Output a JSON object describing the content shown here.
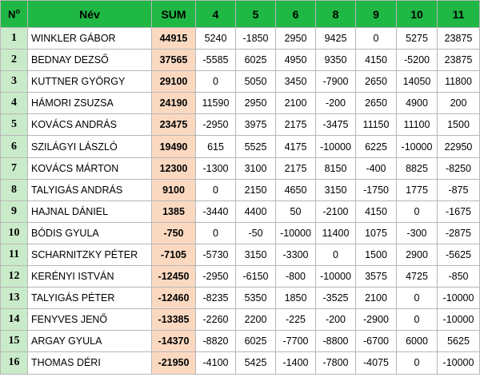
{
  "header": {
    "num": "N",
    "num_sup": "o",
    "name": "Név",
    "sum": "SUM",
    "rounds": [
      "4",
      "5",
      "6",
      "8",
      "9",
      "10",
      "11"
    ]
  },
  "rows": [
    {
      "num": "1",
      "name": "WINKLER GÁBOR",
      "sum": "44915",
      "values": [
        "5240",
        "-1850",
        "2950",
        "9425",
        "0",
        "5275",
        "23875"
      ]
    },
    {
      "num": "2",
      "name": "BEDNAY DEZSŐ",
      "sum": "37565",
      "values": [
        "-5585",
        "6025",
        "4950",
        "9350",
        "4150",
        "-5200",
        "23875"
      ]
    },
    {
      "num": "3",
      "name": "KUTTNER GYÖRGY",
      "sum": "29100",
      "values": [
        "0",
        "5050",
        "3450",
        "-7900",
        "2650",
        "14050",
        "11800"
      ]
    },
    {
      "num": "4",
      "name": "HÁMORI ZSUZSA",
      "sum": "24190",
      "values": [
        "11590",
        "2950",
        "2100",
        "-200",
        "2650",
        "4900",
        "200"
      ]
    },
    {
      "num": "5",
      "name": "KOVÁCS ANDRÁS",
      "sum": "23475",
      "values": [
        "-2950",
        "3975",
        "2175",
        "-3475",
        "11150",
        "11100",
        "1500"
      ]
    },
    {
      "num": "6",
      "name": "SZILÁGYI LÁSZLÓ",
      "sum": "19490",
      "values": [
        "615",
        "5525",
        "4175",
        "-10000",
        "6225",
        "-10000",
        "22950"
      ]
    },
    {
      "num": "7",
      "name": "KOVÁCS MÁRTON",
      "sum": "12300",
      "values": [
        "-1300",
        "3100",
        "2175",
        "8150",
        "-400",
        "8825",
        "-8250"
      ]
    },
    {
      "num": "8",
      "name": "TALYIGÁS ANDRÁS",
      "sum": "9100",
      "values": [
        "0",
        "2150",
        "4650",
        "3150",
        "-1750",
        "1775",
        "-875"
      ]
    },
    {
      "num": "9",
      "name": "HAJNAL DÁNIEL",
      "sum": "1385",
      "values": [
        "-3440",
        "4400",
        "50",
        "-2100",
        "4150",
        "0",
        "-1675"
      ]
    },
    {
      "num": "10",
      "name": "BÓDIS GYULA",
      "sum": "-750",
      "values": [
        "0",
        "-50",
        "-10000",
        "11400",
        "1075",
        "-300",
        "-2875"
      ]
    },
    {
      "num": "11",
      "name": "SCHARNITZKY PÉTER",
      "sum": "-7105",
      "values": [
        "-5730",
        "3150",
        "-3300",
        "0",
        "1500",
        "2900",
        "-5625"
      ]
    },
    {
      "num": "12",
      "name": "KERÉNYI ISTVÁN",
      "sum": "-12450",
      "values": [
        "-2950",
        "-6150",
        "-800",
        "-10000",
        "3575",
        "4725",
        "-850"
      ]
    },
    {
      "num": "13",
      "name": "TALYIGÁS PÉTER",
      "sum": "-12460",
      "values": [
        "-8235",
        "5350",
        "1850",
        "-3525",
        "2100",
        "0",
        "-10000"
      ]
    },
    {
      "num": "14",
      "name": "FENYVES JENŐ",
      "sum": "-13385",
      "values": [
        "-2260",
        "2200",
        "-225",
        "-200",
        "-2900",
        "0",
        "-10000"
      ]
    },
    {
      "num": "15",
      "name": "ARGAY GYULA",
      "sum": "-14370",
      "values": [
        "-8820",
        "6025",
        "-7700",
        "-8800",
        "-6700",
        "6000",
        "5625"
      ]
    },
    {
      "num": "16",
      "name": "THOMAS DÉRI",
      "sum": "-21950",
      "values": [
        "-4100",
        "5425",
        "-1400",
        "-7800",
        "-4075",
        "0",
        "-10000"
      ]
    }
  ],
  "colors": {
    "header_bg": "#1fb845",
    "num_col_bg": "#c9ebc9",
    "sum_col_bg": "#fbd9c1",
    "grid": "#b7b7b7"
  }
}
